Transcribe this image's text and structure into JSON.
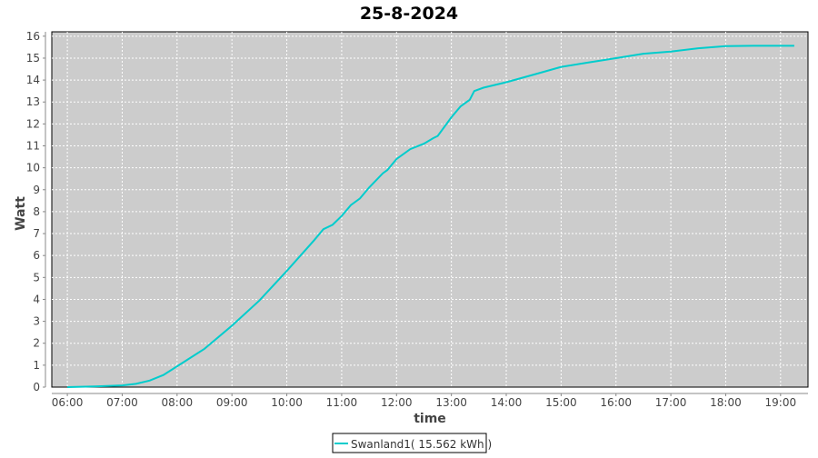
{
  "chart_data": {
    "type": "line",
    "title": "25-8-2024",
    "xlabel": "time",
    "ylabel": "Watt",
    "xlim": [
      "05:43",
      "19:30"
    ],
    "ylim": [
      0,
      16.2
    ],
    "x_ticks": [
      "06:00",
      "07:00",
      "08:00",
      "09:00",
      "10:00",
      "11:00",
      "12:00",
      "13:00",
      "14:00",
      "15:00",
      "16:00",
      "17:00",
      "18:00",
      "19:00"
    ],
    "y_ticks": [
      0,
      1,
      2,
      3,
      4,
      5,
      6,
      7,
      8,
      9,
      10,
      11,
      12,
      13,
      14,
      15,
      16
    ],
    "grid": true,
    "legend_position": "bottom",
    "colors": {
      "series": "#00cccc",
      "plot_bg": "#cccccc",
      "grid": "#ffffff"
    },
    "series": [
      {
        "name": "Swanland1( 15.562 kWh )",
        "x": [
          "06:00",
          "06:30",
          "07:00",
          "07:15",
          "07:30",
          "07:45",
          "08:00",
          "08:30",
          "09:00",
          "09:30",
          "10:00",
          "10:30",
          "10:40",
          "10:50",
          "11:00",
          "11:10",
          "11:20",
          "11:30",
          "11:45",
          "11:50",
          "12:00",
          "12:15",
          "12:30",
          "12:40",
          "12:45",
          "13:00",
          "13:10",
          "13:20",
          "13:25",
          "13:35",
          "14:00",
          "14:30",
          "15:00",
          "15:30",
          "16:00",
          "16:30",
          "17:00",
          "17:30",
          "18:00",
          "18:30",
          "19:15"
        ],
        "y": [
          0.0,
          0.03,
          0.08,
          0.15,
          0.3,
          0.55,
          0.95,
          1.75,
          2.8,
          3.95,
          5.3,
          6.7,
          7.2,
          7.4,
          7.8,
          8.3,
          8.6,
          9.1,
          9.75,
          9.9,
          10.4,
          10.85,
          11.1,
          11.35,
          11.45,
          12.3,
          12.8,
          13.1,
          13.5,
          13.65,
          13.9,
          14.25,
          14.6,
          14.8,
          15.0,
          15.2,
          15.3,
          15.45,
          15.55,
          15.56,
          15.56
        ]
      }
    ]
  }
}
